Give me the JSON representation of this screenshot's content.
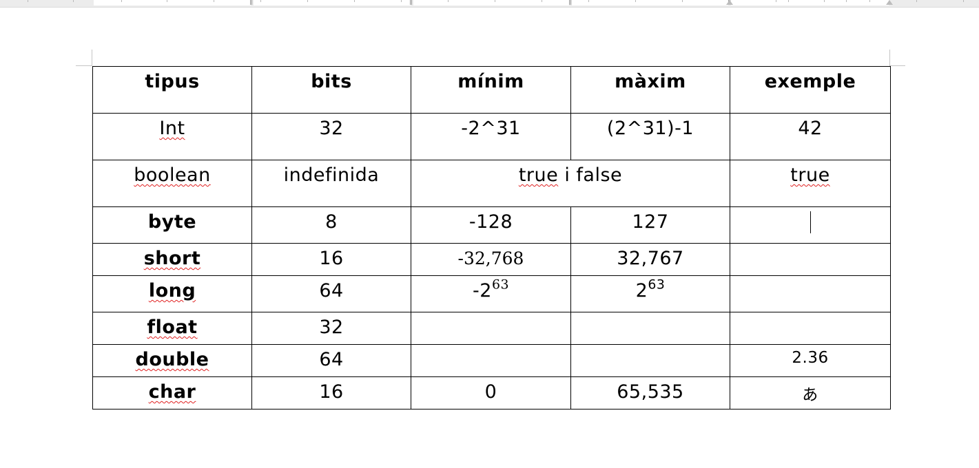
{
  "window": {
    "view": "document-page",
    "ruler": {
      "visible": true
    }
  },
  "table": {
    "headers": [
      "tipus",
      "bits",
      "mínim",
      "màxim",
      "exemple"
    ],
    "rows": {
      "int": {
        "type": "Int",
        "bits": "32",
        "min": "-2^31",
        "max": "(2^31)-1",
        "example": "42"
      },
      "boolean": {
        "type": "boolean",
        "bits": "indefinida",
        "range": "true i false",
        "example": "true"
      },
      "byte": {
        "type": "byte",
        "bits": "8",
        "min": "-128",
        "max": "127",
        "example": ""
      },
      "short": {
        "type": "short",
        "bits": "16",
        "min": "-32,768",
        "max": "32,767",
        "example": ""
      },
      "long": {
        "type": "long",
        "bits": "64",
        "min_base": "-2",
        "min_exp": "63",
        "max_base": "2",
        "max_exp": "63",
        "example": ""
      },
      "float": {
        "type": "float",
        "bits": "32",
        "min": "",
        "max": "",
        "example": ""
      },
      "double": {
        "type": "double",
        "bits": "64",
        "min": "",
        "max": "",
        "example": "2.36"
      },
      "char": {
        "type": "char",
        "bits": "16",
        "min": "0",
        "max": "65,535",
        "example": "あ"
      }
    }
  },
  "colors": {
    "page": "#ffffff",
    "ruler": "#ececec",
    "border": "#000000",
    "spellcheck": "#e02020"
  }
}
